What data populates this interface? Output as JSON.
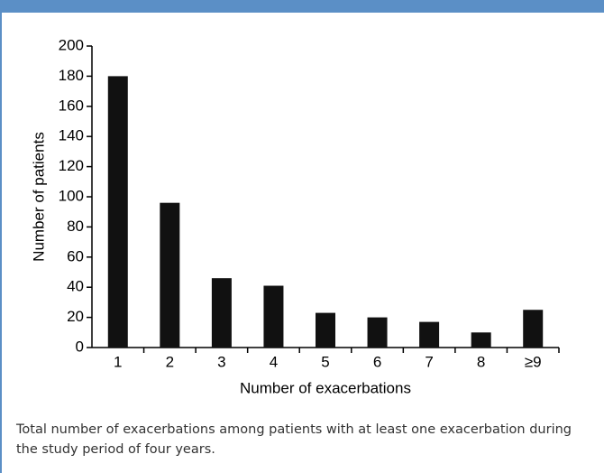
{
  "chart_data": {
    "type": "bar",
    "x_label": "Number of exacerbations",
    "y_label": "Number of patients",
    "categories": [
      "1",
      "2",
      "3",
      "4",
      "5",
      "6",
      "7",
      "8",
      "≥9"
    ],
    "values": [
      180,
      96,
      46,
      41,
      23,
      20,
      17,
      10,
      25
    ],
    "color": "#111111",
    "ylim": [
      0,
      200
    ],
    "yticks": [
      0,
      20,
      40,
      60,
      80,
      100,
      120,
      140,
      160,
      180,
      200
    ],
    "grid": false
  },
  "caption": "Total number of exacerbations among patients with at least one exacerbation during the study period of four years."
}
